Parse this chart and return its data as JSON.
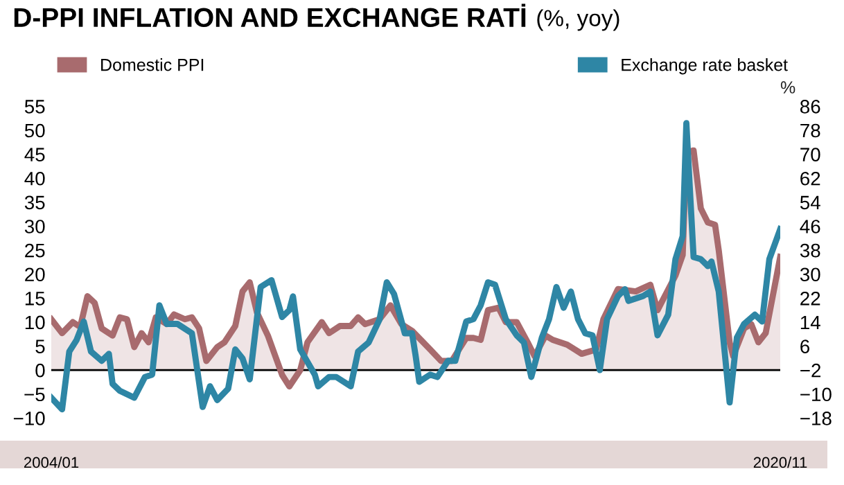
{
  "chart_data": {
    "type": "line",
    "title": "D-PPI INFLATION AND EXCHANGE RATİ",
    "subtitle": "(%, yoy)",
    "y2label": "%",
    "series": [
      {
        "name": "Domestic PPI",
        "type": "area",
        "color": "#a86b6e",
        "axis": "y",
        "x": [
          "2004-01",
          "2004-04",
          "2004-07",
          "2004-09",
          "2004-11",
          "2005-01",
          "2005-03",
          "2005-06",
          "2005-08",
          "2005-10",
          "2005-12",
          "2006-02",
          "2006-04",
          "2006-06",
          "2006-09",
          "2006-11",
          "2007-02",
          "2007-04",
          "2007-06",
          "2007-08",
          "2007-11",
          "2008-01",
          "2008-04",
          "2008-06",
          "2008-08",
          "2008-10",
          "2009-01",
          "2009-05",
          "2009-07",
          "2009-10",
          "2009-12",
          "2010-04",
          "2010-06",
          "2010-09",
          "2010-12",
          "2011-02",
          "2011-04",
          "2011-08",
          "2011-11",
          "2012-02",
          "2012-05",
          "2012-10",
          "2013-01",
          "2013-04",
          "2013-08",
          "2013-10",
          "2013-12",
          "2014-02",
          "2014-05",
          "2014-07",
          "2014-10",
          "2015-01",
          "2015-03",
          "2015-06",
          "2015-08",
          "2015-12",
          "2016-04",
          "2016-08",
          "2016-10",
          "2017-02",
          "2017-07",
          "2017-11",
          "2018-01",
          "2018-06",
          "2018-08",
          "2018-09",
          "2018-11",
          "2019-01",
          "2019-03",
          "2019-05",
          "2019-06",
          "2019-09",
          "2019-10",
          "2020-01",
          "2020-03",
          "2020-05",
          "2020-07",
          "2020-11"
        ],
        "values": [
          10.6,
          7.7,
          10,
          9,
          15.4,
          14,
          8.7,
          7.2,
          11,
          10.6,
          4.8,
          7.7,
          5.8,
          11,
          9.6,
          11.6,
          10.6,
          11,
          8.7,
          1.9,
          4.8,
          5.8,
          9.2,
          16.4,
          18.3,
          12,
          7.2,
          -1,
          -3.4,
          0,
          5.8,
          10,
          7.7,
          9.2,
          9.2,
          11,
          9.6,
          10.6,
          13.5,
          9.6,
          8.2,
          4.3,
          1.9,
          1.9,
          6.7,
          6.7,
          6.3,
          12.5,
          13,
          10,
          10,
          5.8,
          2.9,
          7.2,
          6.3,
          5.3,
          3.4,
          4.3,
          10.6,
          16.9,
          16.4,
          17.8,
          12.5,
          19.7,
          24,
          45.3,
          45.8,
          33.7,
          30.8,
          30.3,
          25,
          5.8,
          2.9,
          8.7,
          9.6,
          5.8,
          7.7,
          23.6
        ]
      },
      {
        "name": "Exchange rate basket",
        "color": "#2e86a5",
        "axis": "y2",
        "x": [
          "2004-01",
          "2004-04",
          "2004-06",
          "2004-08",
          "2004-10",
          "2004-12",
          "2005-03",
          "2005-05",
          "2005-06",
          "2005-08",
          "2005-12",
          "2006-03",
          "2006-05",
          "2006-07",
          "2006-09",
          "2006-12",
          "2007-04",
          "2007-07",
          "2007-09",
          "2007-11",
          "2008-02",
          "2008-04",
          "2008-06",
          "2008-08",
          "2008-11",
          "2009-02",
          "2009-05",
          "2009-07",
          "2009-08",
          "2009-10",
          "2010-02",
          "2010-03",
          "2010-06",
          "2010-08",
          "2010-12",
          "2011-02",
          "2011-05",
          "2011-08",
          "2011-10",
          "2011-12",
          "2012-03",
          "2012-05",
          "2012-06",
          "2012-07",
          "2012-10",
          "2012-12",
          "2013-03",
          "2013-05",
          "2013-08",
          "2013-10",
          "2013-12",
          "2014-02",
          "2014-04",
          "2014-07",
          "2014-10",
          "2014-12",
          "2015-02",
          "2015-05",
          "2015-07",
          "2015-09",
          "2015-11",
          "2016-01",
          "2016-03",
          "2016-05",
          "2016-07",
          "2016-09",
          "2016-11",
          "2017-02",
          "2017-04",
          "2017-05",
          "2017-09",
          "2017-11",
          "2018-01",
          "2018-04",
          "2018-06",
          "2018-08",
          "2018-09",
          "2018-10",
          "2018-11",
          "2019-01",
          "2019-03",
          "2019-04",
          "2019-06",
          "2019-09",
          "2019-11",
          "2020-01",
          "2020-04",
          "2020-06",
          "2020-08",
          "2020-11"
        ],
        "values": [
          -11.2,
          -15.1,
          4.2,
          8,
          14.2,
          4.2,
          1.1,
          3.4,
          -6.6,
          -8.9,
          -11.2,
          -4.3,
          -3.5,
          19.6,
          13.4,
          13.4,
          10.3,
          -14.3,
          -7.4,
          -12,
          -8.2,
          4.9,
          1.9,
          -5.1,
          25.7,
          28,
          15.7,
          18,
          22.6,
          4.9,
          -3.5,
          -7.4,
          -4.3,
          -4.3,
          -7.4,
          4.2,
          7.2,
          14.9,
          27.3,
          23.4,
          10.3,
          10.3,
          2.6,
          -5.9,
          -3.5,
          -4.3,
          1.1,
          1.1,
          14.2,
          15,
          19.6,
          27.3,
          26.5,
          15,
          9.6,
          7.2,
          -4.3,
          8.8,
          15,
          25.7,
          18.8,
          24.2,
          15,
          10.3,
          9.6,
          -2,
          15,
          22.7,
          25,
          21.1,
          22.7,
          24.2,
          9.6,
          16.5,
          35,
          42.7,
          80.4,
          58.1,
          35.7,
          35,
          32.7,
          34.2,
          24.2,
          -12.8,
          8.8,
          13.4,
          16.5,
          14.2,
          35,
          45
        ]
      }
    ],
    "xlim": [
      "2004-01",
      "2020-11"
    ],
    "xticks": [
      {
        "value": "2004-01",
        "label": "2004/01"
      },
      {
        "value": "2020-11",
        "label": "2020/11"
      }
    ],
    "ylim": [
      -10,
      55
    ],
    "yticks": [
      -10,
      -5,
      0,
      5,
      10,
      15,
      20,
      25,
      30,
      35,
      40,
      45,
      50,
      55
    ],
    "y2lim": [
      -18,
      86
    ],
    "y2ticks": [
      -18,
      -10,
      -2,
      6,
      14,
      22,
      30,
      38,
      46,
      54,
      62,
      70,
      78,
      86
    ],
    "ref_lines": [
      {
        "axis": "y",
        "value": 0,
        "color": "#000000"
      }
    ],
    "grid": false,
    "legend": "top",
    "marker": "none",
    "line_style": "solid"
  }
}
